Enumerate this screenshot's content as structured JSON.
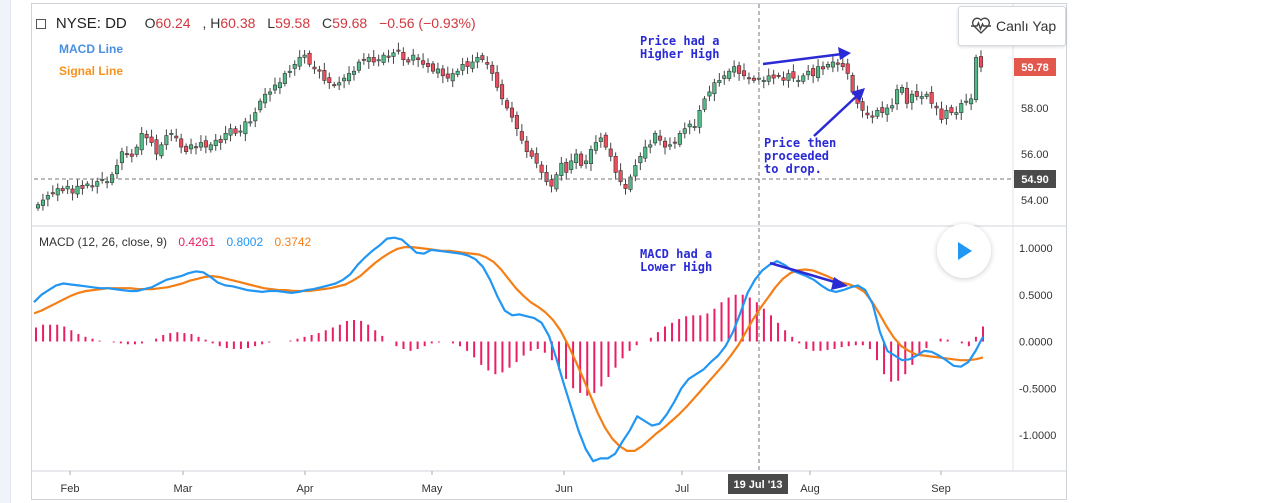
{
  "header": {
    "symbol": "NYSE: DD",
    "open_label": "O",
    "open": "60.24",
    "high_label": ", H",
    "high": "60.38",
    "low_label": "L",
    "low": "59.58",
    "close_label": "C",
    "close": "59.68",
    "change": "−0.56 (−0.93%)"
  },
  "legend": {
    "macd_line": "MACD Line",
    "signal_line": "Signal Line"
  },
  "live_button": {
    "label": "Canlı Yap",
    "icon": "heartbeat-icon"
  },
  "macd_header": {
    "title": "MACD (12, 26, close, 9)",
    "hist_value": "0.4261",
    "macd_value": "0.8002",
    "signal_value": "0.3742"
  },
  "annotations": {
    "price_high": "Price had a\nHigher High",
    "price_drop": "Price then\nproceeded\nto drop.",
    "macd_high": "MACD had a\nLower High"
  },
  "crosshair_date": "19 Jul '13",
  "price_tags": {
    "last": "59.78",
    "crosshair": "54.90"
  },
  "colors": {
    "up": "#53b987",
    "down": "#eb4d5c",
    "macd": "#2196f3",
    "signal": "#f57f17",
    "hist": "#e91e63",
    "annotation": "#2b2bd6"
  },
  "chart_data": [
    {
      "type": "candlestick",
      "title": "NYSE: DD",
      "x_ticks": [
        "Feb",
        "Mar",
        "Apr",
        "May",
        "Jun",
        "Jul",
        "Aug",
        "Sep"
      ],
      "y_ticks": [
        "54.00",
        "56.00",
        "58.00"
      ],
      "ylim": [
        53.2,
        61.0
      ],
      "close": [
        53.8,
        54.0,
        54.2,
        54.3,
        54.5,
        54.4,
        54.6,
        54.3,
        54.6,
        54.5,
        54.7,
        54.6,
        54.8,
        54.9,
        54.8,
        55.1,
        55.5,
        56.1,
        56.0,
        55.9,
        56.3,
        56.9,
        56.7,
        56.5,
        56.0,
        56.4,
        56.8,
        56.9,
        56.7,
        56.3,
        56.1,
        56.4,
        56.3,
        56.5,
        56.3,
        56.4,
        56.6,
        56.5,
        56.9,
        57.1,
        56.9,
        57.0,
        57.4,
        57.4,
        57.8,
        58.3,
        58.6,
        58.7,
        59.0,
        59.1,
        59.5,
        59.6,
        59.9,
        60.2,
        60.3,
        59.9,
        59.7,
        59.6,
        59.2,
        59.1,
        59.0,
        59.1,
        59.3,
        59.5,
        59.6,
        60.0,
        60.1,
        60.2,
        60.0,
        60.1,
        60.3,
        60.2,
        60.4,
        60.5,
        60.1,
        60.0,
        60.3,
        60.1,
        59.9,
        59.8,
        59.6,
        59.7,
        59.4,
        59.3,
        59.5,
        59.6,
        59.9,
        59.8,
        60.0,
        60.2,
        60.1,
        59.9,
        59.5,
        58.9,
        58.4,
        58.0,
        57.6,
        57.1,
        56.6,
        56.1,
        55.9,
        55.6,
        55.2,
        54.8,
        54.6,
        55.1,
        55.6,
        55.2,
        55.7,
        56.0,
        55.5,
        55.7,
        56.2,
        56.5,
        56.7,
        56.3,
        55.9,
        55.2,
        54.8,
        54.5,
        55.0,
        55.5,
        55.9,
        56.3,
        56.4,
        56.9,
        56.6,
        56.3,
        56.4,
        56.5,
        56.9,
        57.1,
        57.3,
        57.2,
        57.9,
        58.4,
        58.7,
        59.1,
        59.2,
        59.4,
        59.6,
        59.8,
        59.5,
        59.4,
        59.3,
        59.2,
        59.3,
        59.2,
        59.4,
        59.3,
        59.4,
        59.2,
        59.5,
        59.3,
        59.2,
        59.4,
        59.6,
        59.4,
        59.8,
        59.7,
        59.9,
        60.0,
        59.9,
        59.8,
        59.5,
        58.7,
        58.2,
        57.9,
        57.7,
        57.6,
        57.9,
        57.8,
        58.0,
        58.1,
        58.8,
        58.9,
        58.2,
        58.6,
        58.5,
        58.5,
        58.6,
        58.2,
        58.0,
        57.5,
        57.9,
        57.8,
        57.8,
        58.2,
        58.3,
        58.4,
        60.2,
        59.78
      ]
    },
    {
      "type": "line",
      "title": "MACD (12, 26, close, 9)",
      "y_ticks": [
        "1.0000",
        "0.5000",
        "0.0000",
        "-0.5000",
        "-1.0000"
      ],
      "ylim": [
        -1.38,
        1.18
      ],
      "series": [
        {
          "name": "MACD Line",
          "values": [
            0.42,
            0.5,
            0.55,
            0.6,
            0.62,
            0.61,
            0.6,
            0.59,
            0.58,
            0.57,
            0.57,
            0.56,
            0.55,
            0.54,
            0.54,
            0.56,
            0.58,
            0.62,
            0.66,
            0.68,
            0.7,
            0.73,
            0.75,
            0.74,
            0.69,
            0.63,
            0.6,
            0.59,
            0.57,
            0.55,
            0.54,
            0.53,
            0.54,
            0.54,
            0.53,
            0.52,
            0.53,
            0.55,
            0.56,
            0.58,
            0.6,
            0.62,
            0.66,
            0.72,
            0.82,
            0.9,
            0.97,
            1.03,
            1.1,
            1.11,
            1.09,
            1.02,
            0.95,
            0.94,
            0.98,
            0.97,
            0.96,
            0.95,
            0.94,
            0.92,
            0.88,
            0.8,
            0.66,
            0.48,
            0.33,
            0.28,
            0.29,
            0.27,
            0.25,
            0.2,
            0.06,
            -0.18,
            -0.45,
            -0.7,
            -0.95,
            -1.15,
            -1.28,
            -1.25,
            -1.25,
            -1.2,
            -1.07,
            -0.95,
            -0.8,
            -0.85,
            -0.9,
            -0.88,
            -0.78,
            -0.65,
            -0.5,
            -0.4,
            -0.35,
            -0.3,
            -0.22,
            -0.15,
            -0.05,
            0.1,
            0.3,
            0.52,
            0.66,
            0.76,
            0.82,
            0.86,
            0.82,
            0.76,
            0.73,
            0.7,
            0.66,
            0.6,
            0.55,
            0.53,
            0.55,
            0.58,
            0.6,
            0.55,
            0.4,
            0.1,
            -0.1,
            -0.15,
            -0.2,
            -0.19,
            -0.15,
            -0.1,
            -0.11,
            -0.15,
            -0.2,
            -0.26,
            -0.27,
            -0.22,
            -0.1,
            0.05
          ]
        },
        {
          "name": "Signal Line",
          "values": [
            0.3,
            0.33,
            0.37,
            0.41,
            0.45,
            0.49,
            0.52,
            0.54,
            0.55,
            0.56,
            0.57,
            0.57,
            0.57,
            0.57,
            0.56,
            0.56,
            0.56,
            0.57,
            0.58,
            0.6,
            0.62,
            0.65,
            0.67,
            0.69,
            0.7,
            0.69,
            0.67,
            0.65,
            0.63,
            0.61,
            0.59,
            0.57,
            0.56,
            0.55,
            0.55,
            0.54,
            0.54,
            0.54,
            0.55,
            0.56,
            0.57,
            0.59,
            0.61,
            0.65,
            0.7,
            0.77,
            0.84,
            0.9,
            0.95,
            0.99,
            1.01,
            1.01,
            1.0,
            0.99,
            0.98,
            0.97,
            0.97,
            0.96,
            0.95,
            0.94,
            0.93,
            0.9,
            0.85,
            0.77,
            0.67,
            0.57,
            0.49,
            0.42,
            0.37,
            0.31,
            0.23,
            0.12,
            -0.03,
            -0.2,
            -0.38,
            -0.57,
            -0.76,
            -0.92,
            -1.04,
            -1.12,
            -1.17,
            -1.17,
            -1.12,
            -1.05,
            -0.98,
            -0.92,
            -0.85,
            -0.78,
            -0.7,
            -0.61,
            -0.52,
            -0.43,
            -0.34,
            -0.25,
            -0.15,
            -0.04,
            0.1,
            0.24,
            0.36,
            0.47,
            0.58,
            0.67,
            0.73,
            0.76,
            0.77,
            0.76,
            0.73,
            0.7,
            0.66,
            0.63,
            0.61,
            0.58,
            0.53,
            0.43,
            0.3,
            0.16,
            0.04,
            -0.05,
            -0.1,
            -0.14,
            -0.15,
            -0.16,
            -0.17,
            -0.18,
            -0.19,
            -0.2,
            -0.2,
            -0.19,
            -0.17
          ]
        },
        {
          "name": "Histogram",
          "type": "bar",
          "values": [
            0.15,
            0.18,
            0.18,
            0.18,
            0.16,
            0.12,
            0.08,
            0.05,
            0.03,
            0.01,
            0.0,
            -0.01,
            -0.02,
            -0.03,
            -0.03,
            -0.02,
            0.0,
            0.03,
            0.07,
            0.09,
            0.1,
            0.09,
            0.08,
            0.05,
            0.02,
            -0.02,
            -0.05,
            -0.07,
            -0.08,
            -0.08,
            -0.07,
            -0.05,
            -0.03,
            -0.01,
            0.0,
            0.0,
            0.01,
            0.03,
            0.05,
            0.07,
            0.09,
            0.12,
            0.15,
            0.18,
            0.22,
            0.23,
            0.22,
            0.18,
            0.12,
            0.06,
            0.0,
            -0.05,
            -0.08,
            -0.1,
            -0.08,
            -0.05,
            -0.02,
            -0.01,
            0.0,
            -0.02,
            -0.05,
            -0.1,
            -0.17,
            -0.25,
            -0.31,
            -0.35,
            -0.33,
            -0.28,
            -0.22,
            -0.15,
            -0.1,
            -0.08,
            -0.12,
            -0.2,
            -0.3,
            -0.4,
            -0.5,
            -0.55,
            -0.58,
            -0.55,
            -0.48,
            -0.38,
            -0.28,
            -0.18,
            -0.1,
            -0.04,
            0.0,
            0.04,
            0.1,
            0.16,
            0.2,
            0.24,
            0.27,
            0.28,
            0.28,
            0.3,
            0.35,
            0.42,
            0.47,
            0.5,
            0.5,
            0.47,
            0.42,
            0.35,
            0.28,
            0.2,
            0.12,
            0.05,
            -0.02,
            -0.08,
            -0.1,
            -0.1,
            -0.09,
            -0.08,
            -0.06,
            -0.05,
            -0.04,
            -0.04,
            -0.08,
            -0.2,
            -0.35,
            -0.43,
            -0.42,
            -0.35,
            -0.25,
            -0.15,
            -0.07,
            0.0,
            0.03,
            0.02,
            0.0,
            -0.02,
            -0.05,
            0.05,
            0.16
          ]
        }
      ]
    }
  ]
}
